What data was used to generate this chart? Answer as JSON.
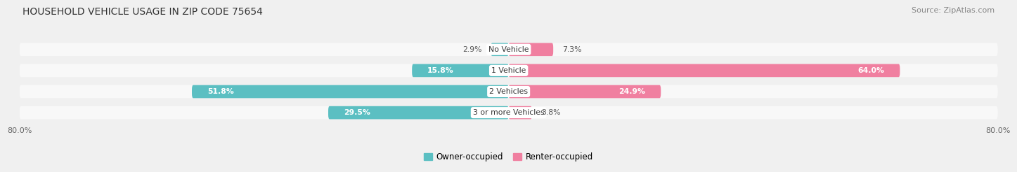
{
  "title": "HOUSEHOLD VEHICLE USAGE IN ZIP CODE 75654",
  "source": "Source: ZipAtlas.com",
  "categories": [
    "No Vehicle",
    "1 Vehicle",
    "2 Vehicles",
    "3 or more Vehicles"
  ],
  "owner_values": [
    2.9,
    15.8,
    51.8,
    29.5
  ],
  "renter_values": [
    7.3,
    64.0,
    24.9,
    3.8
  ],
  "owner_color": "#5bbfc2",
  "renter_color": "#f07fa0",
  "bg_color": "#f0f0f0",
  "bar_bg_color": "#e0e0e0",
  "row_bg_color": "#f8f8f8",
  "axis_min": -80.0,
  "axis_max": 80.0,
  "x_tick_labels": [
    "80.0%",
    "80.0%"
  ],
  "title_fontsize": 10,
  "source_fontsize": 8,
  "bar_height": 0.62,
  "label_threshold": 15
}
